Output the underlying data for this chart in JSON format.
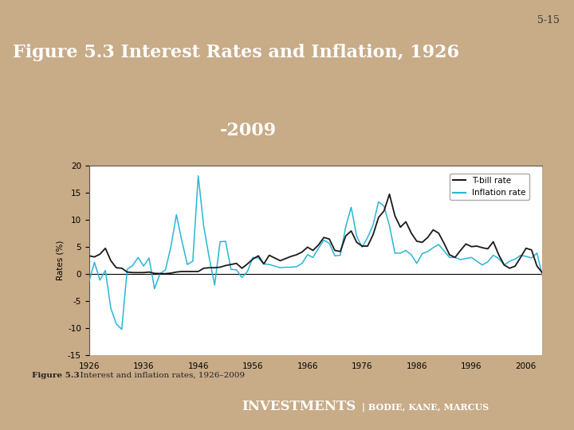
{
  "title_line1": "Figure 5.3 Interest Rates and Inflation, 1926",
  "title_line2": "-2009",
  "slide_number": "5-15",
  "caption_bold": "Figure 5.3",
  "caption_normal": "  Interest and inflation rates, 1926–2009",
  "bg_color_outer": "#c8ab87",
  "bg_color_header": "#1a1f6e",
  "bg_color_chart_outer": "#cde4f0",
  "bg_color_chart_inner": "#ffffff",
  "bg_color_footer": "#1a1f6e",
  "ylabel": "Rates (%)",
  "ylim": [
    -15,
    20
  ],
  "yticks": [
    -15,
    -10,
    -5,
    0,
    5,
    10,
    15,
    20
  ],
  "xticks": [
    1926,
    1936,
    1946,
    1956,
    1966,
    1976,
    1986,
    1996,
    2006
  ],
  "tbill_color": "#1a1a1a",
  "inflation_color": "#29b6d6",
  "years": [
    1926,
    1927,
    1928,
    1929,
    1930,
    1931,
    1932,
    1933,
    1934,
    1935,
    1936,
    1937,
    1938,
    1939,
    1940,
    1941,
    1942,
    1943,
    1944,
    1945,
    1946,
    1947,
    1948,
    1949,
    1950,
    1951,
    1952,
    1953,
    1954,
    1955,
    1956,
    1957,
    1958,
    1959,
    1960,
    1961,
    1962,
    1963,
    1964,
    1965,
    1966,
    1967,
    1968,
    1969,
    1970,
    1971,
    1972,
    1973,
    1974,
    1975,
    1976,
    1977,
    1978,
    1979,
    1980,
    1981,
    1982,
    1983,
    1984,
    1985,
    1986,
    1987,
    1988,
    1989,
    1990,
    1991,
    1992,
    1993,
    1994,
    1995,
    1996,
    1997,
    1998,
    1999,
    2000,
    2001,
    2002,
    2003,
    2004,
    2005,
    2006,
    2007,
    2008,
    2009
  ],
  "tbill_rates": [
    3.3,
    3.1,
    3.6,
    4.7,
    2.4,
    1.1,
    1.0,
    0.3,
    0.2,
    0.2,
    0.2,
    0.3,
    0.05,
    0.02,
    0.0,
    0.1,
    0.3,
    0.4,
    0.4,
    0.4,
    0.4,
    1.0,
    1.1,
    1.1,
    1.2,
    1.5,
    1.7,
    1.9,
    1.0,
    1.8,
    2.7,
    3.3,
    1.8,
    3.4,
    2.9,
    2.4,
    2.8,
    3.2,
    3.5,
    4.0,
    4.9,
    4.3,
    5.3,
    6.7,
    6.4,
    4.3,
    4.1,
    7.0,
    7.9,
    5.8,
    5.1,
    5.1,
    7.2,
    10.4,
    11.6,
    14.7,
    10.7,
    8.6,
    9.6,
    7.5,
    6.0,
    5.8,
    6.7,
    8.1,
    7.5,
    5.6,
    3.5,
    3.0,
    4.3,
    5.5,
    5.0,
    5.1,
    4.8,
    4.6,
    5.9,
    3.5,
    1.6,
    1.0,
    1.4,
    3.0,
    4.7,
    4.4,
    1.4,
    0.15
  ],
  "inflation_rates": [
    -1.5,
    2.1,
    -1.2,
    0.6,
    -6.4,
    -9.3,
    -10.3,
    0.8,
    1.5,
    3.0,
    1.4,
    2.9,
    -2.8,
    0.0,
    0.7,
    5.0,
    10.9,
    6.1,
    1.7,
    2.3,
    18.1,
    8.8,
    3.0,
    -2.1,
    5.9,
    6.0,
    0.8,
    0.7,
    -0.7,
    0.4,
    3.0,
    2.9,
    1.8,
    1.7,
    1.4,
    1.1,
    1.2,
    1.2,
    1.3,
    1.9,
    3.5,
    3.0,
    4.7,
    6.2,
    5.6,
    3.3,
    3.4,
    8.7,
    12.3,
    6.9,
    4.9,
    6.7,
    9.0,
    13.3,
    12.5,
    8.9,
    3.8,
    3.8,
    4.3,
    3.5,
    1.9,
    3.7,
    4.1,
    4.8,
    5.4,
    4.2,
    3.0,
    3.0,
    2.6,
    2.8,
    3.0,
    2.3,
    1.6,
    2.2,
    3.4,
    2.8,
    1.6,
    2.3,
    2.7,
    3.4,
    3.2,
    2.9,
    3.8,
    -0.4
  ]
}
